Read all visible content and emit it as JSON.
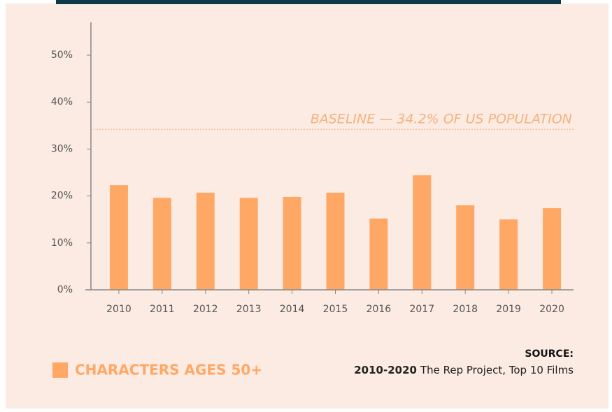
{
  "chart_data": {
    "type": "bar",
    "categories": [
      "2010",
      "2011",
      "2012",
      "2013",
      "2014",
      "2015",
      "2016",
      "2017",
      "2018",
      "2019",
      "2020"
    ],
    "series": [
      {
        "name": "CHARACTERS AGES 50+",
        "color": "#ffa866",
        "values": [
          22.3,
          19.6,
          20.7,
          19.6,
          19.8,
          20.7,
          15.2,
          24.4,
          18.0,
          15.0,
          17.4
        ]
      }
    ],
    "ylim": [
      0,
      57
    ],
    "yticks": [
      {
        "value": 0,
        "label": "0%"
      },
      {
        "value": 10,
        "label": "10%"
      },
      {
        "value": 20,
        "label": "20%"
      },
      {
        "value": 30,
        "label": "30%"
      },
      {
        "value": 40,
        "label": "40%"
      },
      {
        "value": 50,
        "label": "50%"
      }
    ],
    "baseline": {
      "value": 34.2,
      "label": "BASELINE — 34.2% OF US POPULATION"
    },
    "source": {
      "heading": "SOURCE:",
      "years": "2010-2020",
      "text": "The Rep Project, Top 10 Films"
    },
    "legend": "bottom-left"
  }
}
